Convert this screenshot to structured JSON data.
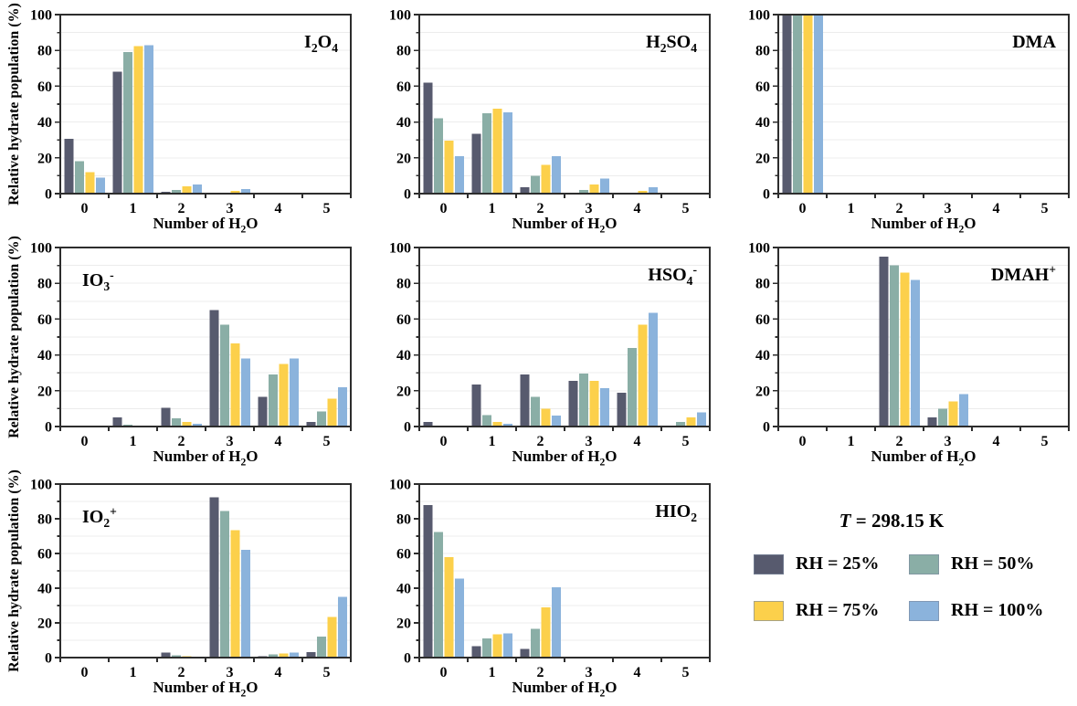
{
  "figure": {
    "ylabel": "Relative hydrate population (%)",
    "xlabel_segments": [
      {
        "t": "Number of H"
      },
      {
        "t": "2",
        "m": "sub"
      },
      {
        "t": "O"
      }
    ],
    "ylim": [
      0,
      100
    ],
    "yticks": [
      0,
      20,
      40,
      60,
      80,
      100
    ],
    "grid_step": 10,
    "grid_on": true,
    "categories": [
      "0",
      "1",
      "2",
      "3",
      "4",
      "5"
    ]
  },
  "colors": {
    "rh25": "#575a6e",
    "rh50": "#8aaea6",
    "rh75": "#fcd04b",
    "rh100": "#8bb3dc",
    "spine": "#2d2d2d",
    "grid": "#ececec"
  },
  "legend": {
    "title_segments": [
      {
        "t": "T",
        "m": "i"
      },
      {
        "t": " = 298.15 K"
      }
    ],
    "entries": [
      {
        "label": "RH = 25%",
        "color": "#575a6e"
      },
      {
        "label": "RH = 50%",
        "color": "#8aaea6"
      },
      {
        "label": "RH = 75%",
        "color": "#fcd04b"
      },
      {
        "label": "RH = 100%",
        "color": "#8bb3dc"
      }
    ]
  },
  "chart_data": [
    {
      "type": "bar",
      "id": "i2o4",
      "title": "I2O4",
      "title_segments": [
        {
          "t": "I"
        },
        {
          "t": "2",
          "m": "sub"
        },
        {
          "t": "O"
        },
        {
          "t": "4",
          "m": "sub"
        }
      ],
      "title_pos": "right",
      "show_ylabel": true,
      "row": 0,
      "categories": [
        "0",
        "1",
        "2",
        "3",
        "4",
        "5"
      ],
      "ylim": [
        0,
        100
      ],
      "series": [
        {
          "name": "RH = 25%",
          "values": [
            30.5,
            68,
            1,
            0.5,
            0,
            0
          ]
        },
        {
          "name": "RH = 50%",
          "values": [
            18,
            79,
            2,
            0.5,
            0,
            0
          ]
        },
        {
          "name": "RH = 75%",
          "values": [
            12,
            82.5,
            4,
            1.5,
            0,
            0
          ]
        },
        {
          "name": "RH = 100%",
          "values": [
            9,
            83,
            5,
            2.5,
            0,
            0
          ]
        }
      ]
    },
    {
      "type": "bar",
      "id": "h2so4",
      "title": "H2SO4",
      "title_segments": [
        {
          "t": "H"
        },
        {
          "t": "2",
          "m": "sub"
        },
        {
          "t": "SO"
        },
        {
          "t": "4",
          "m": "sub"
        }
      ],
      "title_pos": "right",
      "show_ylabel": false,
      "row": 0,
      "categories": [
        "0",
        "1",
        "2",
        "3",
        "4",
        "5"
      ],
      "ylim": [
        0,
        100
      ],
      "series": [
        {
          "name": "RH = 25%",
          "values": [
            62,
            33.5,
            3.5,
            0.2,
            0.2,
            0
          ]
        },
        {
          "name": "RH = 50%",
          "values": [
            42,
            45,
            10,
            2,
            0.5,
            0
          ]
        },
        {
          "name": "RH = 75%",
          "values": [
            29.5,
            47.5,
            16,
            5,
            1.5,
            0
          ]
        },
        {
          "name": "RH = 100%",
          "values": [
            21,
            45.5,
            21,
            8.5,
            3.5,
            0
          ]
        }
      ]
    },
    {
      "type": "bar",
      "id": "dma",
      "title": "DMA",
      "title_segments": [
        {
          "t": "DMA"
        }
      ],
      "title_pos": "right",
      "show_ylabel": false,
      "row": 0,
      "categories": [
        "0",
        "1",
        "2",
        "3",
        "4",
        "5"
      ],
      "ylim": [
        0,
        100
      ],
      "series": [
        {
          "name": "RH = 25%",
          "values": [
            100,
            0,
            0,
            0,
            0,
            0
          ]
        },
        {
          "name": "RH = 50%",
          "values": [
            100,
            0,
            0,
            0,
            0,
            0
          ]
        },
        {
          "name": "RH = 75%",
          "values": [
            100,
            0,
            0,
            0,
            0,
            0
          ]
        },
        {
          "name": "RH = 100%",
          "values": [
            99.5,
            0.5,
            0,
            0,
            0,
            0
          ]
        }
      ]
    },
    {
      "type": "bar",
      "id": "io3",
      "title": "IO3-",
      "title_segments": [
        {
          "t": "IO"
        },
        {
          "t": "3",
          "m": "sub"
        },
        {
          "t": "-",
          "m": "sup"
        }
      ],
      "title_pos": "left",
      "show_ylabel": true,
      "row": 1,
      "categories": [
        "0",
        "1",
        "2",
        "3",
        "4",
        "5"
      ],
      "ylim": [
        0,
        100
      ],
      "series": [
        {
          "name": "RH = 25%",
          "values": [
            0,
            5,
            10.5,
            65,
            16.5,
            2.5
          ]
        },
        {
          "name": "RH = 50%",
          "values": [
            0,
            1,
            4.5,
            57,
            29,
            8.5
          ]
        },
        {
          "name": "RH = 75%",
          "values": [
            0,
            0.3,
            2.5,
            46.5,
            35,
            15.5
          ]
        },
        {
          "name": "RH = 100%",
          "values": [
            0,
            0.2,
            1.5,
            38,
            38,
            22
          ]
        }
      ]
    },
    {
      "type": "bar",
      "id": "hso4",
      "title": "HSO4-",
      "title_segments": [
        {
          "t": "HSO"
        },
        {
          "t": "4",
          "m": "sub"
        },
        {
          "t": "-",
          "m": "sup"
        }
      ],
      "title_pos": "right",
      "show_ylabel": false,
      "row": 1,
      "categories": [
        "0",
        "1",
        "2",
        "3",
        "4",
        "5"
      ],
      "ylim": [
        0,
        100
      ],
      "series": [
        {
          "name": "RH = 25%",
          "values": [
            2.5,
            23.5,
            29,
            25.5,
            19,
            0.5
          ]
        },
        {
          "name": "RH = 50%",
          "values": [
            0.2,
            6.5,
            16.5,
            29.5,
            44,
            2.5
          ]
        },
        {
          "name": "RH = 75%",
          "values": [
            0,
            2.5,
            10,
            25.5,
            57,
            5
          ]
        },
        {
          "name": "RH = 100%",
          "values": [
            0,
            1.5,
            6,
            21.5,
            63.5,
            8
          ]
        }
      ]
    },
    {
      "type": "bar",
      "id": "dmah",
      "title": "DMAH+",
      "title_segments": [
        {
          "t": "DMAH"
        },
        {
          "t": "+",
          "m": "sup"
        }
      ],
      "title_pos": "right",
      "show_ylabel": false,
      "row": 1,
      "categories": [
        "0",
        "1",
        "2",
        "3",
        "4",
        "5"
      ],
      "ylim": [
        0,
        100
      ],
      "series": [
        {
          "name": "RH = 25%",
          "values": [
            0,
            0,
            95,
            5,
            0,
            0
          ]
        },
        {
          "name": "RH = 50%",
          "values": [
            0,
            0,
            90,
            10,
            0,
            0
          ]
        },
        {
          "name": "RH = 75%",
          "values": [
            0,
            0,
            86,
            14,
            0,
            0
          ]
        },
        {
          "name": "RH = 100%",
          "values": [
            0,
            0,
            82,
            18,
            0,
            0
          ]
        }
      ]
    },
    {
      "type": "bar",
      "id": "io2",
      "title": "IO2+",
      "title_segments": [
        {
          "t": "IO"
        },
        {
          "t": "2",
          "m": "sub"
        },
        {
          "t": "+",
          "m": "sup"
        }
      ],
      "title_pos": "left",
      "show_ylabel": true,
      "row": 2,
      "categories": [
        "0",
        "1",
        "2",
        "3",
        "4",
        "5"
      ],
      "ylim": [
        0,
        100
      ],
      "series": [
        {
          "name": "RH = 25%",
          "values": [
            0,
            0,
            3,
            92.5,
            0.8,
            3.2
          ]
        },
        {
          "name": "RH = 50%",
          "values": [
            0,
            0,
            1.2,
            84.5,
            1.8,
            12
          ]
        },
        {
          "name": "RH = 75%",
          "values": [
            0,
            0,
            0.8,
            73.5,
            2.5,
            23.5
          ]
        },
        {
          "name": "RH = 100%",
          "values": [
            0,
            0,
            0.2,
            62,
            2.8,
            35
          ]
        }
      ]
    },
    {
      "type": "bar",
      "id": "hio2",
      "title": "HIO2",
      "title_segments": [
        {
          "t": "HIO"
        },
        {
          "t": "2",
          "m": "sub"
        }
      ],
      "title_pos": "right",
      "show_ylabel": false,
      "row": 2,
      "categories": [
        "0",
        "1",
        "2",
        "3",
        "4",
        "5"
      ],
      "ylim": [
        0,
        100
      ],
      "series": [
        {
          "name": "RH = 25%",
          "values": [
            88,
            6.5,
            5,
            0,
            0,
            0
          ]
        },
        {
          "name": "RH = 50%",
          "values": [
            72.5,
            11,
            16.5,
            0,
            0,
            0
          ]
        },
        {
          "name": "RH = 75%",
          "values": [
            58,
            13.5,
            29,
            0,
            0,
            0
          ]
        },
        {
          "name": "RH = 100%",
          "values": [
            45.5,
            14,
            40.5,
            0,
            0,
            0
          ]
        }
      ]
    }
  ]
}
